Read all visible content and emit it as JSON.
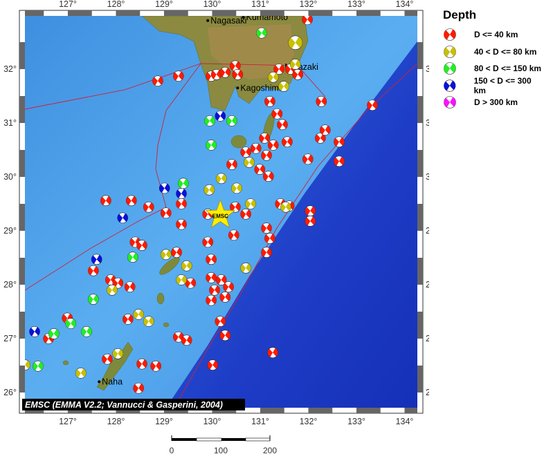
{
  "map": {
    "extent": {
      "lon": [
        126,
        134.3
      ],
      "lat": [
        25.7,
        33.0
      ]
    },
    "lon_ticks": [
      127,
      128,
      129,
      130,
      131,
      132,
      133,
      134
    ],
    "lat_ticks": [
      26,
      27,
      28,
      29,
      30,
      31,
      32
    ],
    "degree_symbol": "°",
    "colors": {
      "shallow_sea": "#4fa6ec",
      "deep_sea": "#1f3fc8",
      "land": "#7d8a3c",
      "plate_boundary": "#d0203a"
    },
    "places": [
      {
        "name": "Nagasaki",
        "lon": 129.91,
        "lat": 32.9
      },
      {
        "name": "Kumamoto",
        "lon": 130.65,
        "lat": 32.96
      },
      {
        "name": "Kagoshima",
        "lon": 130.53,
        "lat": 31.65
      },
      {
        "name": "Miyazaki",
        "lon": 131.45,
        "lat": 32.04
      },
      {
        "name": "Naha",
        "lon": 127.65,
        "lat": 26.2
      }
    ],
    "epicenter": {
      "label": "EMSC",
      "lon": 130.17,
      "lat": 29.29,
      "color": "#ffee00"
    },
    "attribution": "EMSC (EMMA V2.2; Vannucci & Gasperini, 2004)"
  },
  "legend": {
    "title": "Depth",
    "items": [
      {
        "label": "D <= 40 km",
        "color": "#ff1a00"
      },
      {
        "label": "40 < D <= 80 km",
        "color": "#c8c000"
      },
      {
        "label": "80 < D <= 150 km",
        "color": "#22ee22"
      },
      {
        "label": "150 < D <= 300 km",
        "color": "#0a10d8"
      },
      {
        "label": "D > 300 km",
        "color": "#ff10ff"
      }
    ]
  },
  "scale_bar": {
    "labels": [
      "0",
      "100",
      "200"
    ],
    "unit": "km"
  },
  "events": [
    [
      131.98,
      32.92,
      0
    ],
    [
      129.98,
      31.87,
      0
    ],
    [
      130.09,
      31.9,
      0
    ],
    [
      130.27,
      31.94,
      0
    ],
    [
      130.48,
      32.06,
      0
    ],
    [
      130.53,
      31.9,
      0
    ],
    [
      131.39,
      32.0,
      0
    ],
    [
      131.63,
      32.0,
      0
    ],
    [
      131.78,
      31.9,
      0
    ],
    [
      131.2,
      31.4,
      0
    ],
    [
      131.35,
      31.17,
      0
    ],
    [
      131.46,
      30.97,
      0
    ],
    [
      131.09,
      30.72,
      0
    ],
    [
      131.27,
      30.59,
      0
    ],
    [
      131.56,
      30.65,
      0
    ],
    [
      130.7,
      30.46,
      0
    ],
    [
      130.91,
      30.53,
      0
    ],
    [
      131.13,
      30.4,
      0
    ],
    [
      130.41,
      30.23,
      0
    ],
    [
      130.99,
      30.14,
      0
    ],
    [
      131.17,
      30.01,
      0
    ],
    [
      131.99,
      30.33,
      0
    ],
    [
      132.25,
      30.72,
      0
    ],
    [
      132.35,
      30.87,
      0
    ],
    [
      132.64,
      30.65,
      0
    ],
    [
      132.64,
      30.29,
      0
    ],
    [
      133.33,
      31.33,
      0
    ],
    [
      132.27,
      31.4,
      0
    ],
    [
      128.87,
      31.78,
      0
    ],
    [
      129.3,
      31.87,
      0
    ],
    [
      127.79,
      29.56,
      0
    ],
    [
      128.32,
      29.56,
      0
    ],
    [
      128.68,
      29.44,
      0
    ],
    [
      129.04,
      29.33,
      0
    ],
    [
      129.36,
      29.5,
      0
    ],
    [
      129.36,
      29.12,
      0
    ],
    [
      129.91,
      29.31,
      0
    ],
    [
      130.48,
      29.44,
      0
    ],
    [
      130.7,
      29.31,
      0
    ],
    [
      130.45,
      28.92,
      0
    ],
    [
      129.91,
      28.79,
      0
    ],
    [
      129.98,
      28.47,
      0
    ],
    [
      131.13,
      29.05,
      0
    ],
    [
      131.2,
      28.86,
      0
    ],
    [
      131.13,
      28.6,
      0
    ],
    [
      131.42,
      29.5,
      0
    ],
    [
      131.6,
      29.46,
      0
    ],
    [
      132.04,
      29.37,
      0
    ],
    [
      132.04,
      29.18,
      0
    ],
    [
      128.4,
      28.79,
      0
    ],
    [
      128.54,
      28.73,
      0
    ],
    [
      127.53,
      28.26,
      0
    ],
    [
      127.89,
      28.09,
      0
    ],
    [
      128.04,
      28.03,
      0
    ],
    [
      128.29,
      27.96,
      0
    ],
    [
      129.55,
      28.03,
      0
    ],
    [
      129.98,
      28.13,
      0
    ],
    [
      130.19,
      28.09,
      0
    ],
    [
      130.05,
      27.9,
      0
    ],
    [
      130.34,
      27.96,
      0
    ],
    [
      130.27,
      27.77,
      0
    ],
    [
      129.98,
      27.71,
      0
    ],
    [
      128.25,
      27.36,
      0
    ],
    [
      129.3,
      27.03,
      0
    ],
    [
      129.47,
      26.97,
      0
    ],
    [
      130.17,
      27.32,
      0
    ],
    [
      130.27,
      27.06,
      0
    ],
    [
      126.6,
      27.0,
      0
    ],
    [
      126.99,
      27.38,
      0
    ],
    [
      127.82,
      26.62,
      0
    ],
    [
      128.54,
      26.53,
      0
    ],
    [
      128.83,
      26.49,
      0
    ],
    [
      128.47,
      26.08,
      0
    ],
    [
      130.01,
      26.51,
      0
    ],
    [
      131.26,
      26.74,
      0
    ],
    [
      129.26,
      28.6,
      0
    ],
    [
      131.73,
      32.49,
      1
    ],
    [
      131.27,
      31.85,
      1
    ],
    [
      131.49,
      31.68,
      1
    ],
    [
      131.73,
      32.09,
      1
    ],
    [
      130.77,
      30.27,
      1
    ],
    [
      129.94,
      29.76,
      1
    ],
    [
      130.19,
      29.97,
      1
    ],
    [
      130.51,
      29.79,
      1
    ],
    [
      130.8,
      29.5,
      1
    ],
    [
      131.53,
      29.44,
      1
    ],
    [
      130.7,
      28.31,
      1
    ],
    [
      127.92,
      27.9,
      1
    ],
    [
      129.47,
      28.35,
      1
    ],
    [
      129.36,
      28.09,
      1
    ],
    [
      129.04,
      28.56,
      1
    ],
    [
      128.47,
      27.45,
      1
    ],
    [
      128.68,
      27.32,
      1
    ],
    [
      127.27,
      26.36,
      1
    ],
    [
      128.04,
      26.72,
      1
    ],
    [
      126.11,
      26.51,
      1
    ],
    [
      131.03,
      32.67,
      2
    ],
    [
      129.95,
      31.04,
      2
    ],
    [
      130.41,
      31.04,
      2
    ],
    [
      129.98,
      30.59,
      2
    ],
    [
      129.4,
      29.88,
      2
    ],
    [
      128.35,
      28.51,
      2
    ],
    [
      127.53,
      27.73,
      2
    ],
    [
      127.06,
      27.28,
      2
    ],
    [
      127.39,
      27.13,
      2
    ],
    [
      126.38,
      26.49,
      2
    ],
    [
      126.71,
      27.09,
      2
    ],
    [
      130.17,
      31.13,
      3
    ],
    [
      129.01,
      29.79,
      3
    ],
    [
      129.36,
      29.69,
      3
    ],
    [
      128.14,
      29.24,
      3
    ],
    [
      127.6,
      28.47,
      3
    ],
    [
      126.31,
      27.13,
      3
    ]
  ]
}
